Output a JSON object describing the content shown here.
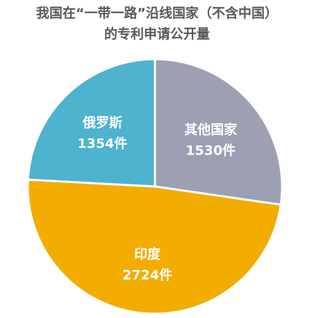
{
  "title_line1": "我国在“一带一路”沿线国家（不含中国）",
  "title_line2": "的专利申请公开量",
  "chart_data": {
    "type": "pie",
    "unit": "件",
    "slices": [
      {
        "name": "其他国家",
        "value": 1530,
        "value_label": "1530件",
        "color": "#9d9fb2"
      },
      {
        "name": "印度",
        "value": 2724,
        "value_label": "2724件",
        "color": "#f2ad00"
      },
      {
        "name": "俄罗斯",
        "value": 1354,
        "value_label": "1354件",
        "color": "#4db3cf"
      }
    ]
  }
}
